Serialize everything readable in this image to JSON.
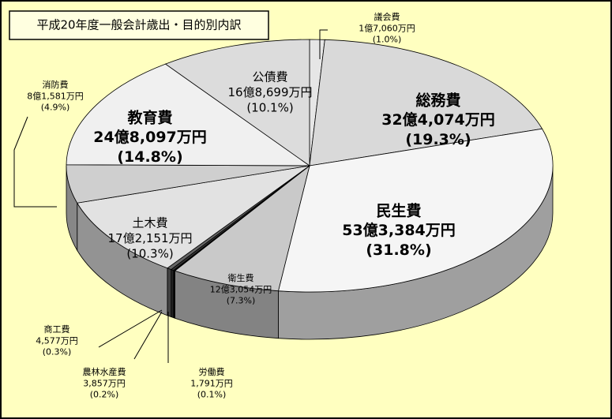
{
  "chart_data": {
    "type": "pie",
    "title": "平成20年度一般会計歳出・目的別内訳",
    "categories": [
      "議会費",
      "総務費",
      "民生費",
      "衛生費",
      "労働費",
      "農林水産費",
      "商工費",
      "土木費",
      "消防費",
      "教育費",
      "公債費"
    ],
    "amount_labels": [
      "1億7,060万円",
      "32億4,074万円",
      "53億3,384万円",
      "12億3,054万円",
      "1,791万円",
      "3,857万円",
      "4,577万円",
      "17億2,151万円",
      "8億1,581万円",
      "24億8,097万円",
      "16億8,699万円"
    ],
    "values": [
      1.0,
      19.3,
      31.8,
      7.3,
      0.1,
      0.2,
      0.3,
      10.3,
      4.9,
      14.8,
      10.1
    ],
    "value_labels": [
      "(1.0%)",
      "(19.3%)",
      "(31.8%)",
      "(7.3%)",
      "(0.1%)",
      "(0.2%)",
      "(0.3%)",
      "(10.3%)",
      "(4.9%)",
      "(14.8%)",
      "(10.1%)"
    ],
    "colors": [
      "#e6e6e6",
      "#d9d9d9",
      "#f5f5f5",
      "#c9c9c9",
      "#000000",
      "#333333",
      "#666666",
      "#e2e2e2",
      "#cfcfcf",
      "#f0f0f0",
      "#dcdcdc"
    ]
  }
}
